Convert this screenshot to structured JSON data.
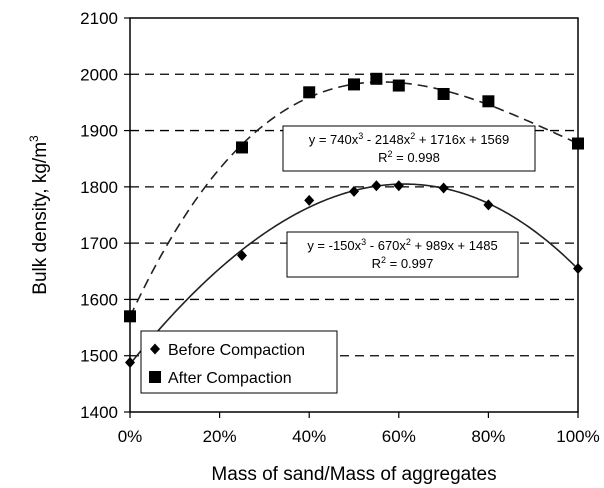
{
  "chart_data": {
    "type": "scatter",
    "title": "",
    "xlabel": "Mass of sand/Mass of aggregates",
    "ylabel": "Bulk density, kg/m",
    "ylabel_superscript": "3",
    "xlim": [
      0,
      1
    ],
    "ylim": [
      1400,
      2100
    ],
    "x_ticks": [
      0,
      0.2,
      0.4,
      0.6,
      0.8,
      1.0
    ],
    "x_tick_labels": [
      "0%",
      "20%",
      "40%",
      "60%",
      "80%",
      "100%"
    ],
    "y_ticks": [
      1400,
      1500,
      1600,
      1700,
      1800,
      1900,
      2000,
      2100
    ],
    "y_tick_labels": [
      "1400",
      "1500",
      "1600",
      "1700",
      "1800",
      "1900",
      "2000",
      "2100"
    ],
    "grid": "horizontal dashed",
    "legend_position": "bottom-left",
    "series": [
      {
        "name": "Before Compaction",
        "marker": "diamond",
        "color": "#000000",
        "x": [
          0,
          0.25,
          0.4,
          0.5,
          0.55,
          0.6,
          0.7,
          0.8,
          1.0
        ],
        "y": [
          1488,
          1678,
          1776,
          1792,
          1802,
          1802,
          1798,
          1768,
          1655
        ],
        "trendline": {
          "style": "solid",
          "coefficients": [
            -150,
            -670,
            989,
            1485
          ],
          "equation_parts": [
            "y = -150x",
            "3",
            " - 670x",
            "2",
            " + 989x + 1485"
          ],
          "r2_parts": [
            "R",
            "2",
            " = 0.997"
          ]
        }
      },
      {
        "name": "After Compaction",
        "marker": "square",
        "color": "#000000",
        "x": [
          0,
          0.25,
          0.4,
          0.5,
          0.55,
          0.6,
          0.7,
          0.8,
          1.0
        ],
        "y": [
          1570,
          1870,
          1968,
          1982,
          1992,
          1980,
          1965,
          1952,
          1877
        ],
        "trendline": {
          "style": "dashed",
          "coefficients": [
            740,
            -2148,
            1716,
            1569
          ],
          "equation_parts": [
            "y = 740x",
            "3",
            " - 2148x",
            "2",
            " + 1716x + 1569"
          ],
          "r2_parts": [
            "R",
            "2",
            " = 0.998"
          ]
        }
      }
    ]
  }
}
